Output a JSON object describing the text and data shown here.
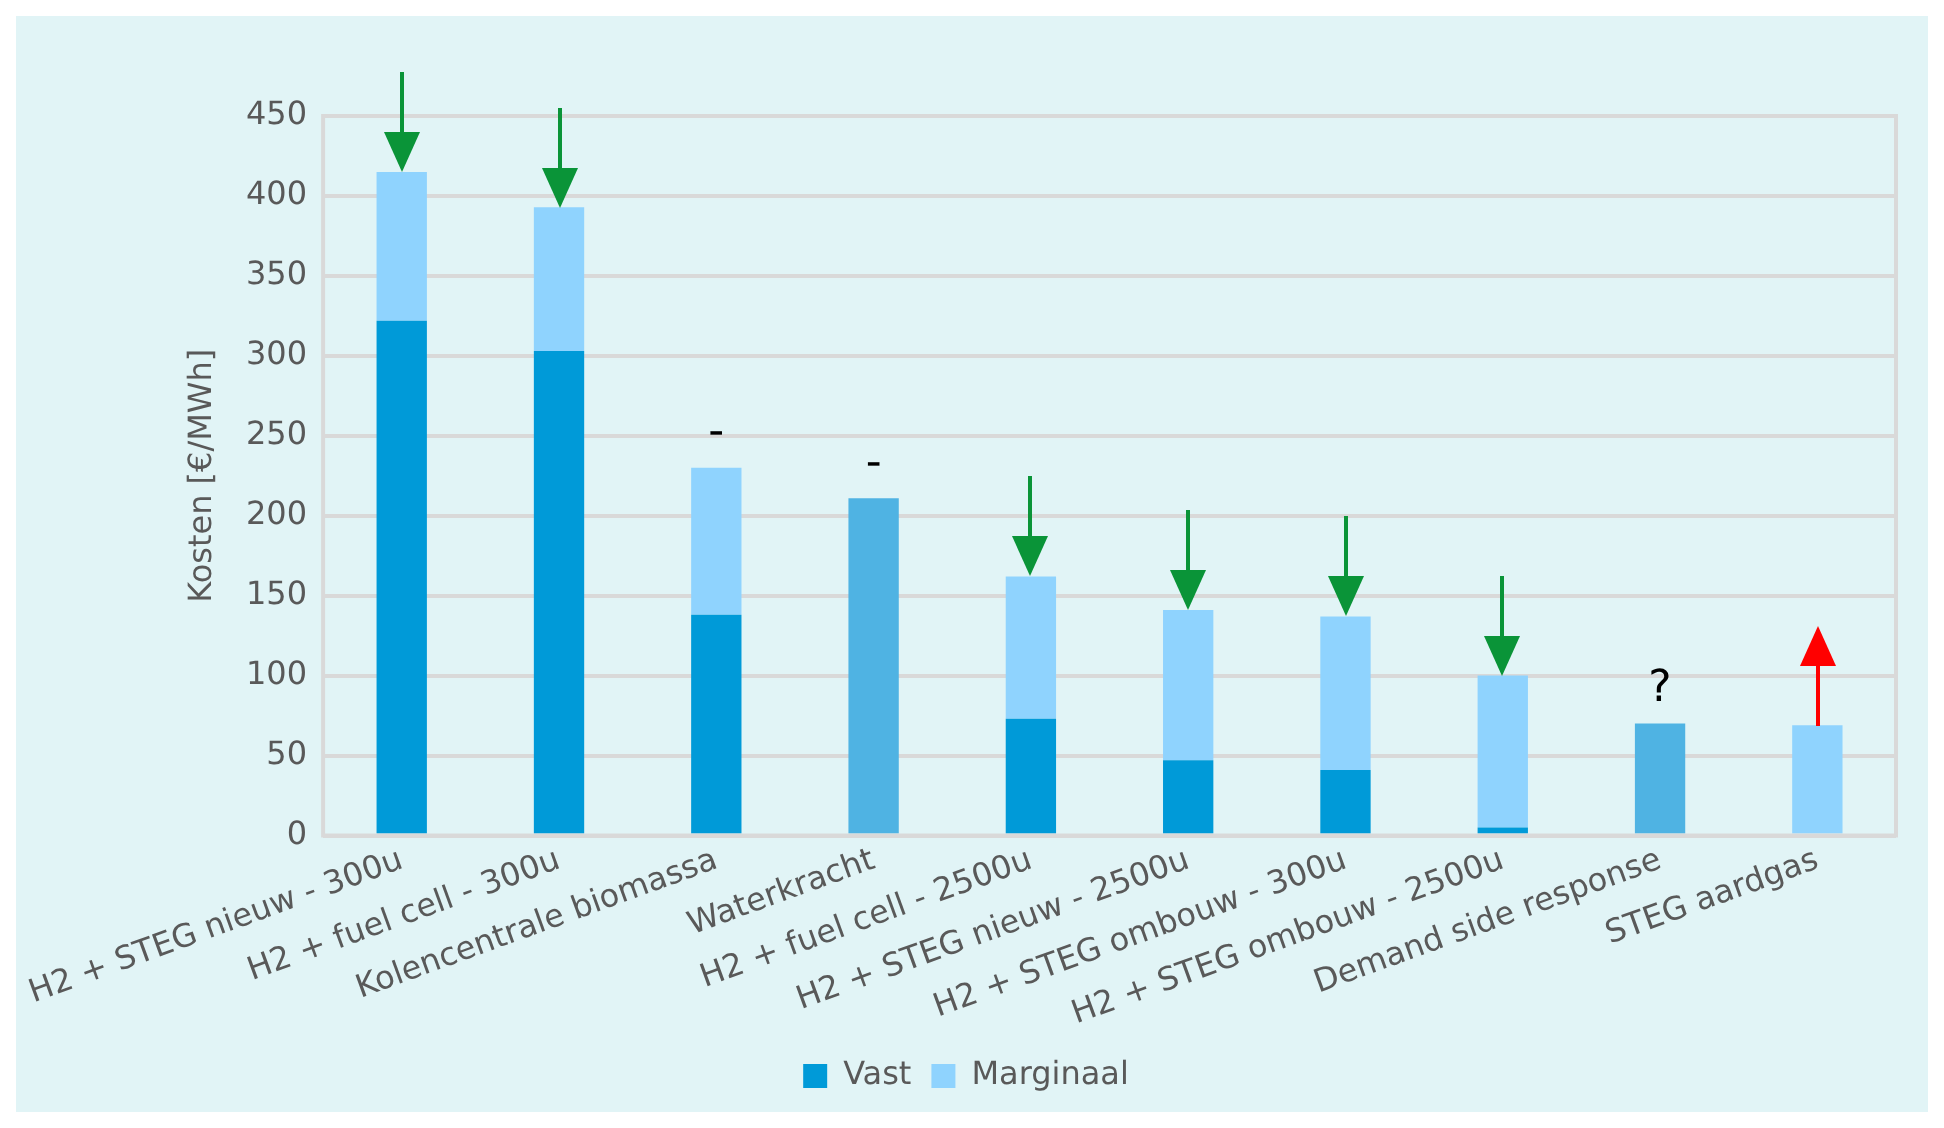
{
  "chart_data": {
    "type": "bar",
    "stacked": true,
    "ylabel": "Kosten [€/MWh]",
    "categories": [
      "H2 + STEG nieuw - 300u",
      "H2 + fuel cell - 300u",
      "Kolencentrale biomassa",
      "Waterkracht",
      "H2 + fuel cell - 2500u",
      "H2 + STEG nieuw - 2500u",
      "H2 + STEG ombouw - 300u",
      "H2 + STEG ombouw - 2500u",
      "Demand side response",
      "STEG aardgas"
    ],
    "series": [
      {
        "name": "Vast",
        "color": "#009ad8",
        "values": [
          322,
          303,
          138,
          null,
          73,
          47,
          41,
          5,
          null,
          0
        ]
      },
      {
        "name": "Marginaal",
        "color": "#8fd3fe",
        "values": [
          93,
          90,
          92,
          null,
          89,
          94,
          96,
          95,
          null,
          69
        ]
      },
      {
        "color": "#4fb3e3",
        "values": [
          null,
          null,
          null,
          211,
          null,
          null,
          null,
          null,
          70,
          null
        ]
      }
    ],
    "ylim": [
      0,
      450
    ],
    "yticks": [
      0,
      50,
      100,
      150,
      200,
      250,
      300,
      350,
      400,
      450
    ],
    "grid": "y",
    "legend": "bottom",
    "annotations": [
      {
        "text": "-",
        "x": "Kolencentrale biomassa",
        "y": 230
      },
      {
        "text": "-",
        "x": "Waterkracht",
        "y": 211
      },
      {
        "text": "?",
        "x": "Demand side response",
        "y": 70
      }
    ]
  }
}
